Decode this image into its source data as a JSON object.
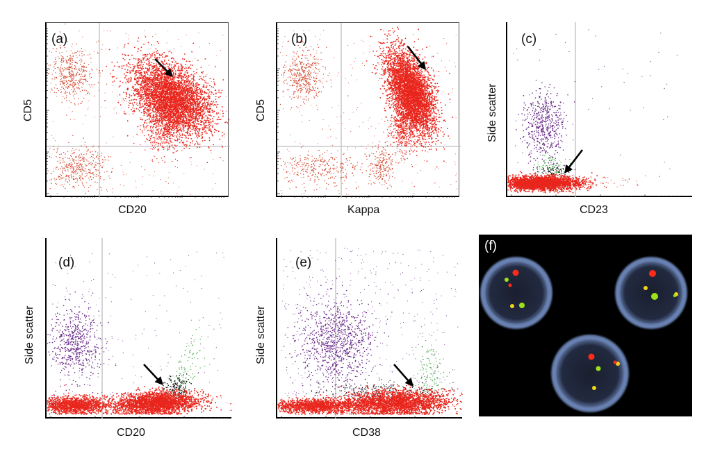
{
  "figure": {
    "panels": [
      {
        "id": "a",
        "label": "(a)",
        "xlabel": "CD20",
        "ylabel": "CD5"
      },
      {
        "id": "b",
        "label": "(b)",
        "xlabel": "Kappa",
        "ylabel": "CD5"
      },
      {
        "id": "c",
        "label": "(c)",
        "xlabel": "CD23",
        "ylabel": "Side scatter"
      },
      {
        "id": "d",
        "label": "(d)",
        "xlabel": "CD20",
        "ylabel": "Side scatter"
      },
      {
        "id": "e",
        "label": "(e)",
        "xlabel": "CD38",
        "ylabel": "Side scatter"
      },
      {
        "id": "f",
        "label": "(f)"
      }
    ]
  },
  "colors": {
    "red_population": "#e8261d",
    "sparse_red": "#d2462c",
    "purple_population": "#6a2a8a",
    "green_population": "#4caf50",
    "black_events": "#111111",
    "gate_line": "#bdbdbd",
    "arrow": "#000000",
    "nucleus": "#6c86b8",
    "fish_red": "#ff2a1a",
    "fish_green": "#9be21a",
    "fish_yellow": "#f3d41b"
  },
  "chart_data": [
    {
      "type": "scatter",
      "panel": "a",
      "xlabel": "CD20",
      "ylabel": "CD5",
      "xscale": "log",
      "yscale": "log",
      "populations": [
        {
          "color": "red",
          "density": "very dense",
          "x_position": "upper-right quadrant",
          "annotated_by_arrow": true
        },
        {
          "color": "red",
          "density": "moderate",
          "x_position": "upper-left quadrant"
        },
        {
          "color": "red",
          "density": "moderate",
          "x_position": "lower-left quadrant"
        }
      ]
    },
    {
      "type": "scatter",
      "panel": "b",
      "xlabel": "Kappa",
      "ylabel": "CD5",
      "xscale": "log",
      "yscale": "log",
      "populations": [
        {
          "color": "red",
          "density": "very dense",
          "x_position": "upper-right quadrant",
          "annotated_by_arrow": true
        },
        {
          "color": "red",
          "density": "moderate",
          "x_position": "upper-left quadrant"
        },
        {
          "color": "red",
          "density": "sparse",
          "x_position": "lower-left and lower-right quadrants"
        }
      ]
    },
    {
      "type": "scatter",
      "panel": "c",
      "xlabel": "CD23",
      "ylabel": "Side scatter",
      "xscale": "log",
      "populations": [
        {
          "color": "red",
          "density": "very dense",
          "x_position": "low CD23, low side scatter",
          "annotated_by_arrow": true
        },
        {
          "color": "purple",
          "density": "moderate",
          "x_position": "low CD23, high side scatter"
        },
        {
          "color": "green",
          "density": "sparse",
          "x_position": "low CD23, intermediate side scatter"
        }
      ]
    },
    {
      "type": "scatter",
      "panel": "d",
      "xlabel": "CD20",
      "ylabel": "Side scatter",
      "xscale": "log",
      "populations": [
        {
          "color": "red",
          "density": "very dense",
          "x_position": "high CD20, low side scatter",
          "annotated_by_arrow": true
        },
        {
          "color": "red",
          "density": "dense",
          "x_position": "low CD20, low side scatter"
        },
        {
          "color": "purple",
          "density": "moderate",
          "x_position": "low CD20, high side scatter"
        },
        {
          "color": "green",
          "density": "sparse",
          "x_position": "high CD20, rising side scatter"
        }
      ]
    },
    {
      "type": "scatter",
      "panel": "e",
      "xlabel": "CD38",
      "ylabel": "Side scatter",
      "xscale": "log",
      "populations": [
        {
          "color": "red",
          "density": "very dense",
          "x_position": "broad CD38, low side scatter",
          "annotated_by_arrow": true
        },
        {
          "color": "purple",
          "density": "moderate",
          "x_position": "low-mid CD38, high side scatter"
        },
        {
          "color": "green",
          "density": "sparse",
          "x_position": "high CD38, rising side scatter"
        }
      ]
    }
  ],
  "fish_image": {
    "nuclei": [
      {
        "red_signals": 2,
        "green_signals": 2,
        "fusion_signals": 1
      },
      {
        "red_signals": 1,
        "green_signals": 2,
        "fusion_signals": 2
      },
      {
        "red_signals": 1,
        "green_signals": 1,
        "fusion_signals": 2
      }
    ]
  }
}
